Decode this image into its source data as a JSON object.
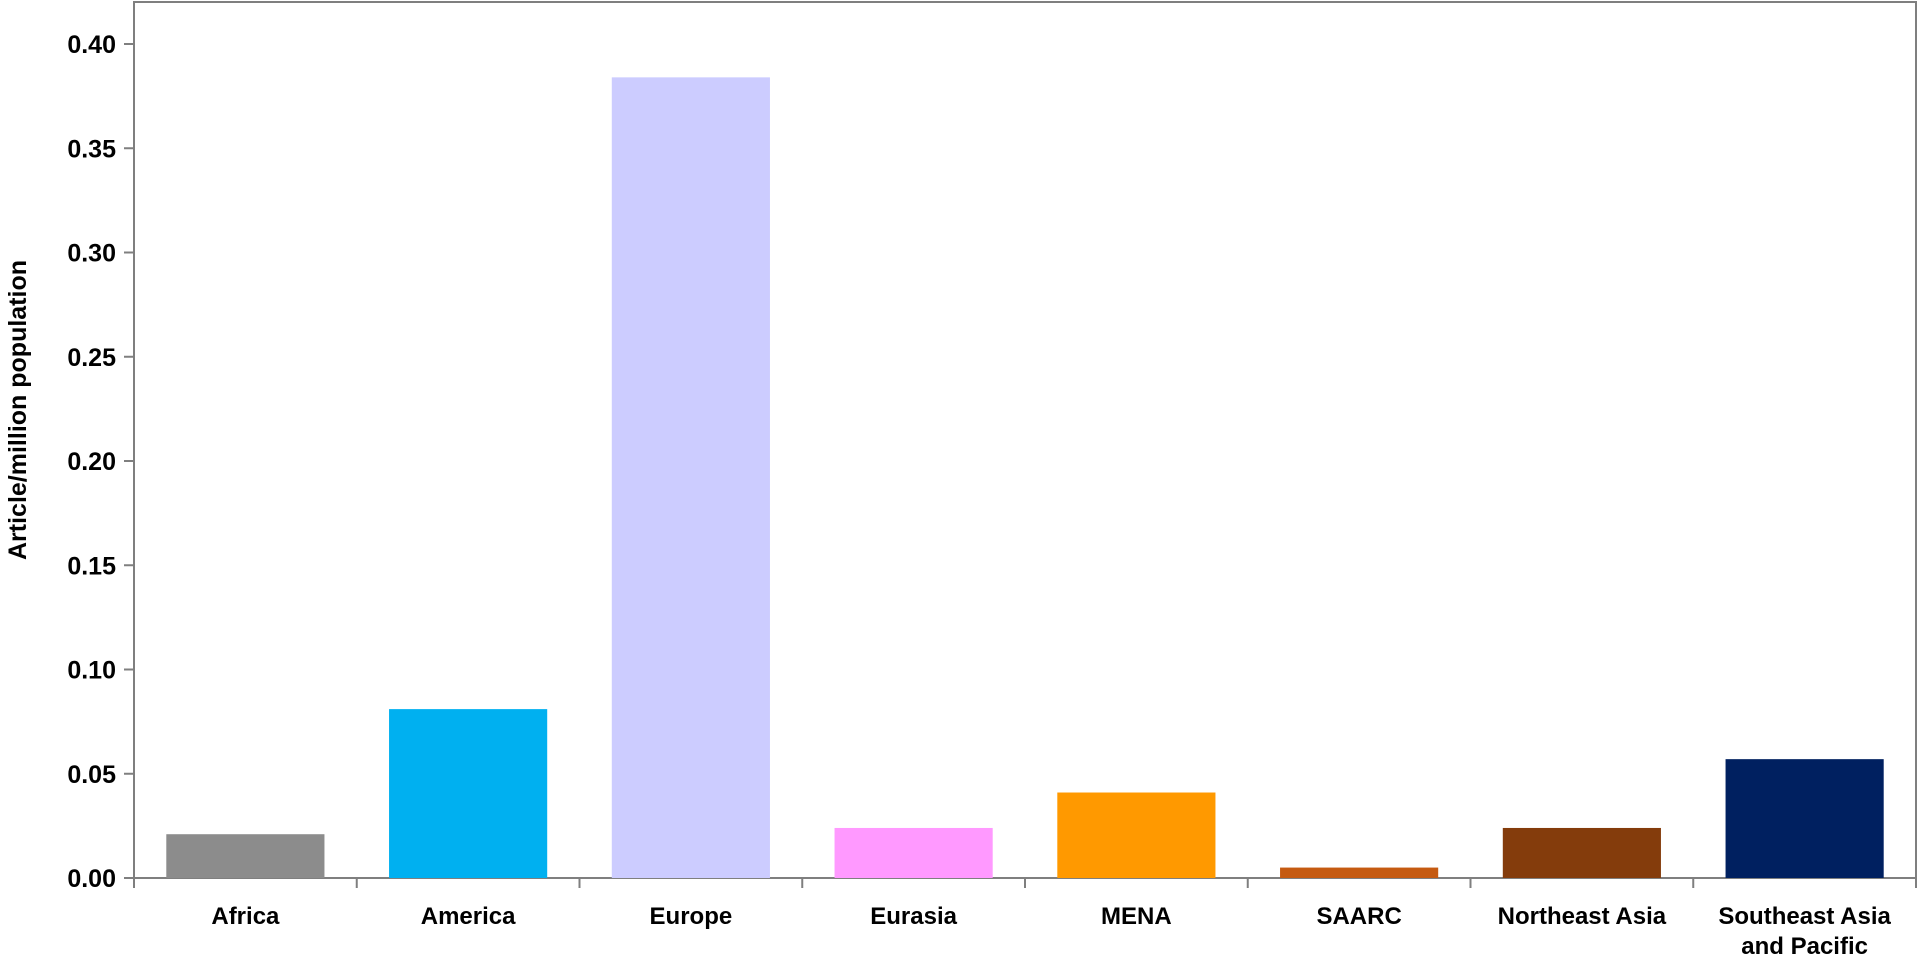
{
  "chart_data": {
    "type": "bar",
    "title": "",
    "xlabel": "",
    "ylabel": "Article/million population",
    "ylim": [
      0,
      0.4
    ],
    "yticks": [
      "0.00",
      "0.05",
      "0.10",
      "0.15",
      "0.20",
      "0.25",
      "0.30",
      "0.35",
      "0.40"
    ],
    "grid": false,
    "legend": "none",
    "categories": [
      [
        "Africa"
      ],
      [
        "America"
      ],
      [
        "Europe"
      ],
      [
        "Eurasia"
      ],
      [
        "MENA"
      ],
      [
        "SAARC"
      ],
      [
        "Northeast Asia"
      ],
      [
        "Southeast Asia",
        "and Pacific"
      ]
    ],
    "values": [
      0.021,
      0.081,
      0.384,
      0.024,
      0.041,
      0.005,
      0.024,
      0.057
    ],
    "colors": [
      "#8c8c8c",
      "#00b0f0",
      "#ccccff",
      "#ff99ff",
      "#ff9900",
      "#c55a11",
      "#843c0c",
      "#002060"
    ]
  }
}
